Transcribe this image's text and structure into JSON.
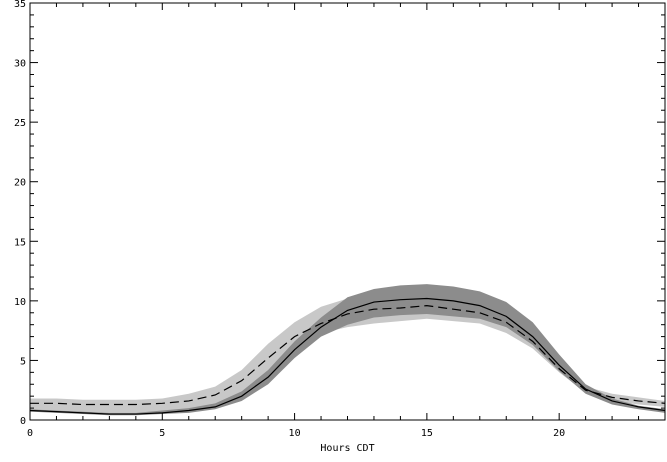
{
  "chart_data": {
    "type": "line",
    "title": "",
    "xlabel": "Hours CDT",
    "ylabel": "",
    "xlim": [
      0,
      24
    ],
    "ylim": [
      0,
      35
    ],
    "x_ticks": [
      0,
      5,
      10,
      15,
      20
    ],
    "y_ticks": [
      0,
      5,
      10,
      15,
      20,
      25,
      30,
      35
    ],
    "grid": false,
    "legend": "none",
    "colors": {
      "light_band": "#c8c8c8",
      "dark_band": "#8c8c8c",
      "solid_line": "#000000",
      "dashed_line": "#000000"
    },
    "x": [
      0,
      1,
      2,
      3,
      4,
      5,
      6,
      7,
      8,
      9,
      10,
      11,
      12,
      13,
      14,
      15,
      16,
      17,
      18,
      19,
      20,
      21,
      22,
      23,
      24
    ],
    "bands": [
      {
        "kind": "light",
        "lower": [
          0.9,
          0.8,
          0.7,
          0.6,
          0.6,
          0.7,
          0.9,
          1.2,
          2.0,
          3.8,
          6.0,
          7.3,
          7.8,
          8.1,
          8.3,
          8.5,
          8.3,
          8.1,
          7.3,
          6.0,
          4.0,
          2.3,
          1.6,
          1.3,
          1.1
        ],
        "upper": [
          1.8,
          1.8,
          1.7,
          1.7,
          1.7,
          1.8,
          2.2,
          2.8,
          4.2,
          6.4,
          8.2,
          9.5,
          10.2,
          10.6,
          10.8,
          11.0,
          10.8,
          10.5,
          9.5,
          7.3,
          4.6,
          2.8,
          2.2,
          1.9,
          1.6
        ]
      },
      {
        "kind": "dark",
        "lower": [
          0.7,
          0.6,
          0.5,
          0.4,
          0.4,
          0.5,
          0.6,
          0.9,
          1.6,
          3.0,
          5.2,
          7.0,
          8.0,
          8.6,
          8.8,
          8.9,
          8.7,
          8.5,
          7.8,
          6.3,
          4.1,
          2.2,
          1.3,
          0.9,
          0.6
        ],
        "upper": [
          0.9,
          0.8,
          0.7,
          0.6,
          0.6,
          0.8,
          1.0,
          1.4,
          2.4,
          4.2,
          6.6,
          8.6,
          10.3,
          11.0,
          11.3,
          11.4,
          11.2,
          10.8,
          9.9,
          8.2,
          5.5,
          3.0,
          1.8,
          1.2,
          0.9
        ]
      }
    ],
    "series": [
      {
        "style": "solid",
        "values": [
          0.8,
          0.7,
          0.6,
          0.5,
          0.5,
          0.6,
          0.8,
          1.1,
          2.0,
          3.6,
          5.9,
          7.8,
          9.2,
          9.9,
          10.1,
          10.2,
          10.0,
          9.6,
          8.7,
          7.0,
          4.6,
          2.6,
          1.6,
          1.1,
          0.8
        ]
      },
      {
        "style": "dashed",
        "values": [
          1.4,
          1.4,
          1.3,
          1.3,
          1.3,
          1.4,
          1.6,
          2.1,
          3.3,
          5.2,
          7.0,
          8.1,
          8.9,
          9.3,
          9.4,
          9.6,
          9.3,
          9.0,
          8.2,
          6.6,
          4.3,
          2.5,
          1.9,
          1.6,
          1.4
        ]
      }
    ]
  }
}
